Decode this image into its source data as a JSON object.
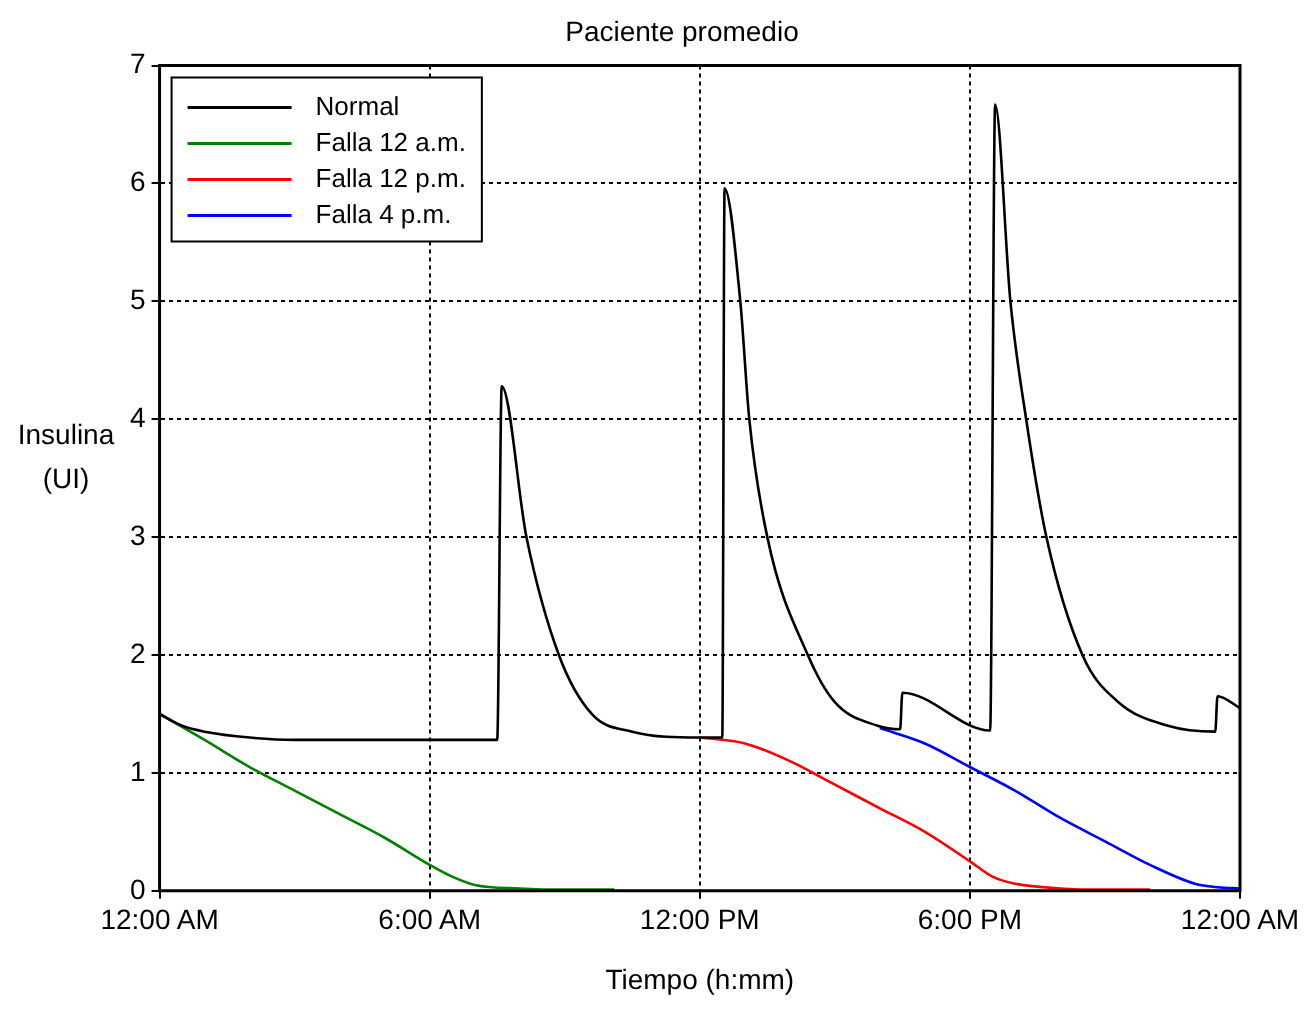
{
  "chart_data": {
    "type": "line",
    "title": "Paciente promedio",
    "xlabel": "Tiempo (h:mm)",
    "ylabel": "Insulina (UI)",
    "xlim": [
      0,
      24
    ],
    "xticks": [
      {
        "value": 0,
        "label": "12:00 AM"
      },
      {
        "value": 6,
        "label": "6:00 AM"
      },
      {
        "value": 12,
        "label": "12:00 PM"
      },
      {
        "value": 18,
        "label": "6:00 PM"
      },
      {
        "value": 24,
        "label": "12:00 AM"
      }
    ],
    "ylim": [
      0,
      7
    ],
    "yticks": [
      0,
      1,
      2,
      3,
      4,
      5,
      6,
      7
    ],
    "grid": true,
    "legend": "top left",
    "line_style": "solid",
    "marker": "none",
    "series": [
      {
        "name": "Normal",
        "color": "#000000",
        "x": [
          0,
          0.5,
          1,
          2,
          3,
          7.5,
          7.6,
          8.15,
          8.87,
          9.6,
          10.5,
          12,
          12.5,
          12.55,
          12.9,
          13.1,
          13.5,
          14.4,
          15,
          15.95,
          16.45,
          16.5,
          18.45,
          18.56,
          18.9,
          19.25,
          19.7,
          20.5,
          21.3,
          22.4,
          23.45,
          23.5,
          24
        ],
        "values": [
          1.5,
          1.4,
          1.35,
          1.3,
          1.28,
          1.28,
          4.28,
          3.0,
          2.0,
          1.5,
          1.35,
          1.3,
          1.3,
          5.96,
          5.0,
          4.0,
          3.0,
          2.0,
          1.6,
          1.4,
          1.37,
          1.68,
          1.36,
          6.67,
          5.0,
          4.0,
          3.0,
          2.0,
          1.6,
          1.4,
          1.35,
          1.65,
          1.55
        ]
      },
      {
        "name": "Falla 12 a.m.",
        "color": "#008000",
        "x": [
          0,
          1,
          2,
          3,
          4,
          5,
          6,
          6.5,
          7,
          8,
          9,
          10.1
        ],
        "values": [
          1.5,
          1.28,
          1.05,
          0.85,
          0.65,
          0.45,
          0.22,
          0.12,
          0.05,
          0.02,
          0.01,
          0.01
        ]
      },
      {
        "name": "Falla 12 p.m.",
        "color": "#ff0000",
        "x": [
          12,
          13,
          14,
          15,
          16,
          17,
          18,
          18.5,
          19,
          20,
          21,
          22
        ],
        "values": [
          1.3,
          1.25,
          1.1,
          0.9,
          0.7,
          0.5,
          0.25,
          0.12,
          0.06,
          0.02,
          0.01,
          0.01
        ]
      },
      {
        "name": "Falla 4 p.m.",
        "color": "#0000ff",
        "x": [
          16,
          17,
          18,
          19,
          20,
          21,
          22,
          23,
          23.5,
          24
        ],
        "values": [
          1.38,
          1.25,
          1.05,
          0.85,
          0.62,
          0.42,
          0.22,
          0.06,
          0.03,
          0.02
        ]
      }
    ]
  }
}
